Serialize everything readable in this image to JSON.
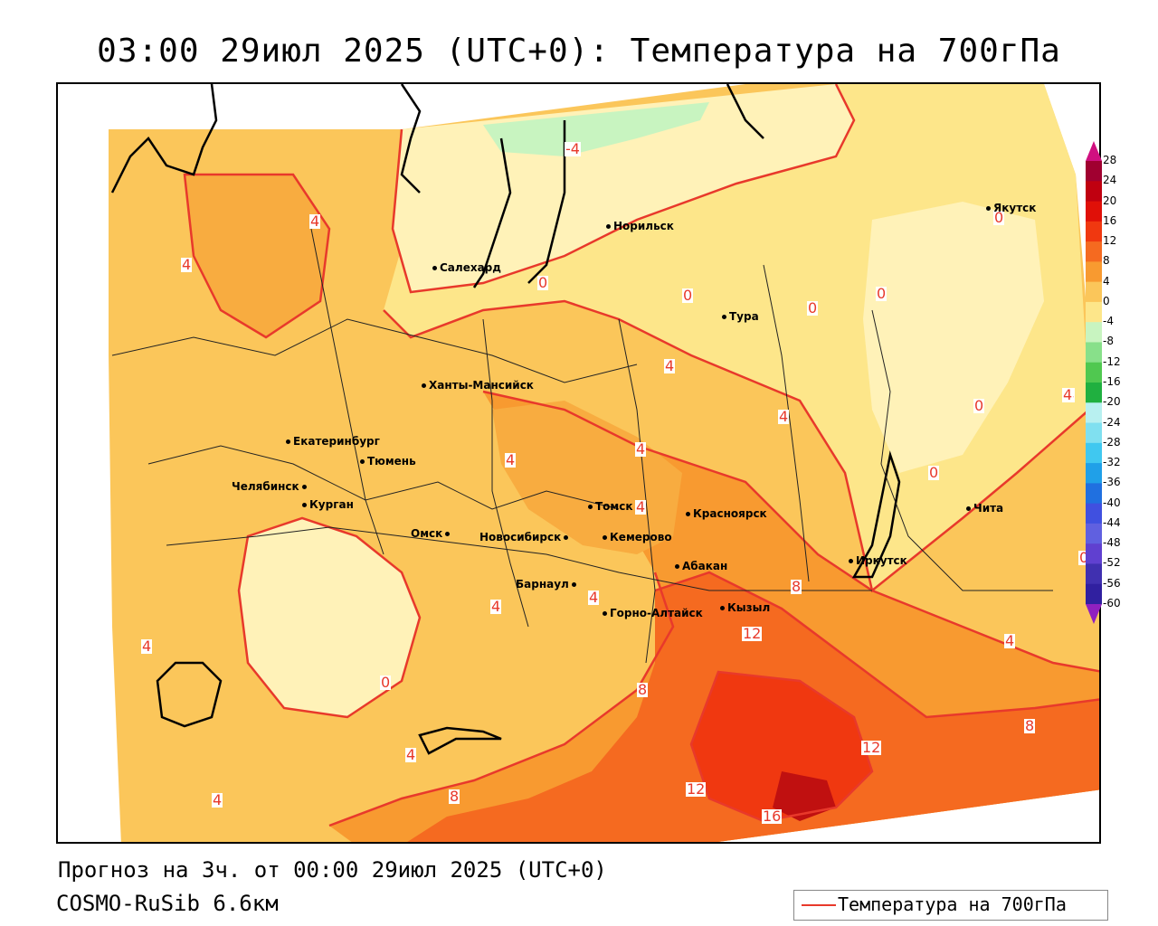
{
  "title": "03:00 29июл 2025 (UTC+0): Температура на 700гПа",
  "footer": {
    "forecast": "Прогноз на 3ч. от 00:00 29июл 2025 (UTC+0)",
    "model": "COSMO-RuSib 6.6км"
  },
  "legend": {
    "label": "Температура на 700гПа",
    "color": "#e8392b"
  },
  "colorbar": {
    "labels": [
      "28",
      "24",
      "20",
      "16",
      "12",
      "8",
      "4",
      "0",
      "-4",
      "-8",
      "-12",
      "-16",
      "-20",
      "-24",
      "-28",
      "-32",
      "-36",
      "-40",
      "-44",
      "-48",
      "-52",
      "-56",
      "-60"
    ],
    "colors": [
      "#a00030",
      "#c00010",
      "#e01008",
      "#f03810",
      "#f56a20",
      "#f89a30",
      "#fbc65a",
      "#fde68a",
      "#c8f4c0",
      "#88e08a",
      "#50c850",
      "#20b040",
      "#b8f0f0",
      "#80e0f0",
      "#40c8f0",
      "#20a0e8",
      "#2070e0",
      "#4050e0",
      "#6060e0",
      "#6040d0",
      "#4030b0",
      "#3020a0",
      "#201080"
    ],
    "top_color": "#d01080",
    "bottom_color": "#9020c0"
  },
  "cities": [
    {
      "name": "Якутск"
    },
    {
      "name": "Норильск"
    },
    {
      "name": "Салехард"
    },
    {
      "name": "Тура"
    },
    {
      "name": "Ханты-Мансийск"
    },
    {
      "name": "Екатеринбург"
    },
    {
      "name": "Тюмень"
    },
    {
      "name": "Челябинск"
    },
    {
      "name": "Курган"
    },
    {
      "name": "Омск"
    },
    {
      "name": "Томск"
    },
    {
      "name": "Красноярск"
    },
    {
      "name": "Новосибирск"
    },
    {
      "name": "Кемерово"
    },
    {
      "name": "Абакан"
    },
    {
      "name": "Барнаул"
    },
    {
      "name": "Горно-Алтайск"
    },
    {
      "name": "Кызыл"
    },
    {
      "name": "Иркутск"
    },
    {
      "name": "Чита"
    }
  ],
  "contour_labels": [
    "-4",
    "4",
    "4",
    "0",
    "0",
    "0",
    "0",
    "0",
    "4",
    "4",
    "4",
    "4",
    "4",
    "0",
    "0",
    "4",
    "4",
    "4",
    "4",
    "0",
    "4",
    "8",
    "8",
    "12",
    "12",
    "12",
    "8",
    "4",
    "8",
    "16",
    "4",
    "4",
    "0"
  ]
}
